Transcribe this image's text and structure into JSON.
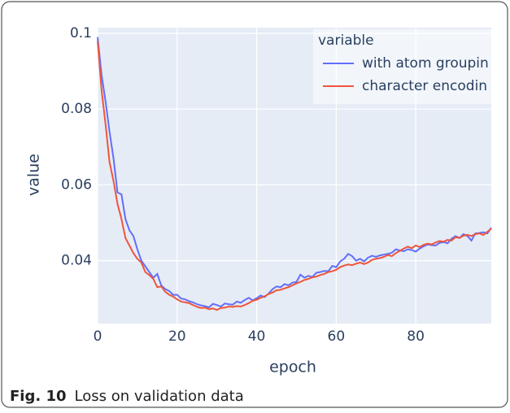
{
  "chart_data": {
    "type": "line",
    "xlabel": "epoch",
    "ylabel": "value",
    "legend_title": "variable",
    "legend": "top-right",
    "grid": true,
    "x": [
      0,
      1,
      2,
      3,
      4,
      5,
      6,
      7,
      8,
      9,
      10,
      11,
      12,
      13,
      14,
      15,
      16,
      17,
      18,
      19,
      20,
      21,
      22,
      23,
      24,
      25,
      26,
      27,
      28,
      29,
      30,
      31,
      32,
      33,
      34,
      35,
      36,
      37,
      38,
      39,
      40,
      41,
      42,
      43,
      44,
      45,
      46,
      47,
      48,
      49,
      50,
      51,
      52,
      53,
      54,
      55,
      56,
      57,
      58,
      59,
      60,
      61,
      62,
      63,
      64,
      65,
      66,
      67,
      68,
      69,
      70,
      71,
      72,
      73,
      74,
      75,
      76,
      77,
      78,
      79,
      80,
      81,
      82,
      83,
      84,
      85,
      86,
      87,
      88,
      89,
      90,
      91,
      92,
      93,
      94,
      95,
      96,
      97,
      98,
      99
    ],
    "xlim": [
      0,
      99
    ],
    "xticks": [
      0,
      20,
      40,
      60,
      80
    ],
    "ylim": [
      0.0234,
      0.1015
    ],
    "yticks": [
      0.04,
      0.06,
      0.08,
      0.1
    ],
    "series": [
      {
        "name": "with atom groupin",
        "color": "#636efa",
        "values": [
          0.099,
          0.089,
          0.082,
          0.074,
          0.067,
          0.058,
          0.0575,
          0.051,
          0.048,
          0.0465,
          0.043,
          0.04,
          0.0385,
          0.037,
          0.0355,
          0.0365,
          0.0335,
          0.0325,
          0.032,
          0.031,
          0.031,
          0.03,
          0.0298,
          0.0293,
          0.029,
          0.0285,
          0.0282,
          0.028,
          0.0277,
          0.0286,
          0.0283,
          0.0279,
          0.0287,
          0.0285,
          0.0284,
          0.0292,
          0.0289,
          0.0296,
          0.0302,
          0.0295,
          0.0301,
          0.0308,
          0.0304,
          0.0313,
          0.0325,
          0.0332,
          0.033,
          0.0338,
          0.0335,
          0.0342,
          0.0344,
          0.0363,
          0.0355,
          0.036,
          0.0357,
          0.0368,
          0.037,
          0.0373,
          0.0372,
          0.0386,
          0.0383,
          0.0398,
          0.0405,
          0.0418,
          0.0412,
          0.04,
          0.0405,
          0.0398,
          0.0408,
          0.0413,
          0.041,
          0.0414,
          0.0416,
          0.0418,
          0.0421,
          0.043,
          0.0427,
          0.0425,
          0.043,
          0.0428,
          0.0424,
          0.0432,
          0.0438,
          0.0443,
          0.0441,
          0.044,
          0.0447,
          0.0449,
          0.0446,
          0.0458,
          0.0465,
          0.046,
          0.047,
          0.0465,
          0.0453,
          0.0472,
          0.0473,
          0.0475,
          0.0472,
          0.0487
        ]
      },
      {
        "name": "character encodin",
        "color": "#ef553b",
        "values": [
          0.098,
          0.085,
          0.076,
          0.066,
          0.061,
          0.055,
          0.051,
          0.046,
          0.044,
          0.042,
          0.0405,
          0.0395,
          0.037,
          0.0362,
          0.0352,
          0.033,
          0.0332,
          0.0318,
          0.031,
          0.0305,
          0.0298,
          0.0292,
          0.029,
          0.0288,
          0.0283,
          0.0278,
          0.0275,
          0.0276,
          0.0272,
          0.0274,
          0.027,
          0.0275,
          0.0276,
          0.0279,
          0.0278,
          0.028,
          0.0279,
          0.0283,
          0.0288,
          0.0294,
          0.0297,
          0.0302,
          0.0306,
          0.0312,
          0.0316,
          0.0322,
          0.0323,
          0.0327,
          0.033,
          0.0335,
          0.034,
          0.0344,
          0.0349,
          0.0352,
          0.0356,
          0.0358,
          0.0362,
          0.0365,
          0.037,
          0.0372,
          0.0376,
          0.0383,
          0.0387,
          0.039,
          0.0388,
          0.0392,
          0.0395,
          0.0391,
          0.0395,
          0.0402,
          0.0405,
          0.0407,
          0.041,
          0.0415,
          0.0412,
          0.042,
          0.0426,
          0.0432,
          0.0437,
          0.0433,
          0.044,
          0.0436,
          0.0442,
          0.0445,
          0.0443,
          0.0448,
          0.0452,
          0.045,
          0.0455,
          0.0453,
          0.0462,
          0.046,
          0.0466,
          0.0468,
          0.0465,
          0.047,
          0.0472,
          0.0468,
          0.0476,
          0.0485
        ]
      }
    ]
  },
  "caption": {
    "label": "Fig. 10",
    "text": "Loss on validation data"
  }
}
